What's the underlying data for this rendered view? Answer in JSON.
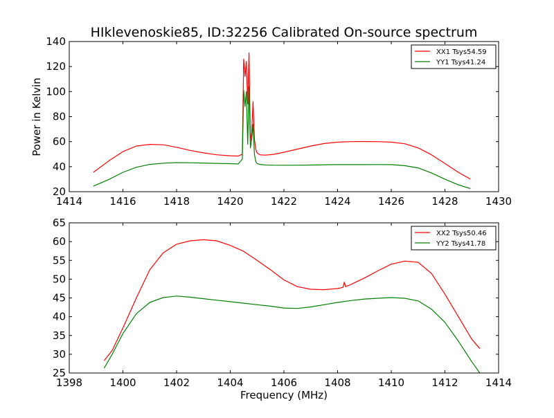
{
  "figure": {
    "title": "HIklevenoskie85, ID:32256 Calibrated On-source spectrum",
    "ylabel": "Power in Kelvin",
    "xlabel": "Frequency (MHz)"
  },
  "colors": {
    "xx": "#ff0000",
    "yy": "#008000",
    "axes": "#000000"
  },
  "chart_data": [
    {
      "type": "line",
      "title": "HIklevenoskie85, ID:32256 Calibrated On-source spectrum",
      "xlabel": "",
      "ylabel": "Power in Kelvin",
      "xlim": [
        1414,
        1430
      ],
      "ylim": [
        20,
        140
      ],
      "xticks": [
        "1414",
        "1416",
        "1418",
        "1420",
        "1422",
        "1424",
        "1426",
        "1428",
        "1430"
      ],
      "yticks": [
        "20",
        "40",
        "60",
        "80",
        "100",
        "120",
        "140"
      ],
      "grid": false,
      "legend_position": "top-right",
      "series": [
        {
          "name": "XX1 Tsys54.59",
          "color": "#ff0000",
          "x": [
            1414.9,
            1415.5,
            1416.0,
            1416.5,
            1417.0,
            1417.5,
            1418.0,
            1418.5,
            1419.0,
            1419.5,
            1420.0,
            1420.3,
            1420.45,
            1420.5,
            1420.55,
            1420.6,
            1420.65,
            1420.7,
            1420.75,
            1420.8,
            1420.85,
            1420.9,
            1420.95,
            1421.0,
            1421.1,
            1421.3,
            1421.6,
            1422.0,
            1422.5,
            1423.0,
            1423.5,
            1424.0,
            1424.5,
            1425.0,
            1425.5,
            1426.0,
            1426.5,
            1427.0,
            1427.5,
            1428.0,
            1428.5,
            1428.95
          ],
          "y": [
            35.5,
            45,
            52,
            56.5,
            57.8,
            57.5,
            55.5,
            53,
            51,
            49.5,
            48.7,
            48.5,
            50,
            126,
            112,
            124,
            90,
            131,
            60,
            68,
            92,
            62,
            54,
            51,
            49.5,
            49.2,
            49.8,
            51.5,
            54,
            56.5,
            58.5,
            59.6,
            60,
            60.1,
            60,
            59.6,
            58.3,
            55,
            49.5,
            42.5,
            35.5,
            30
          ]
        },
        {
          "name": "YY1 Tsys41.24",
          "color": "#008000",
          "x": [
            1414.9,
            1415.5,
            1416.0,
            1416.5,
            1417.0,
            1417.5,
            1418.0,
            1418.5,
            1419.0,
            1419.5,
            1420.0,
            1420.3,
            1420.45,
            1420.5,
            1420.55,
            1420.6,
            1420.65,
            1420.7,
            1420.75,
            1420.8,
            1420.85,
            1420.9,
            1420.95,
            1421.0,
            1421.1,
            1421.3,
            1421.6,
            1422.0,
            1422.5,
            1423.0,
            1423.5,
            1424.0,
            1424.5,
            1425.0,
            1425.5,
            1426.0,
            1426.5,
            1427.0,
            1427.5,
            1428.0,
            1428.5,
            1428.95
          ],
          "y": [
            24.5,
            30,
            35.5,
            39.5,
            41.8,
            42.8,
            43.2,
            43.1,
            42.9,
            42.6,
            42.4,
            42.2,
            46,
            101,
            88,
            100,
            58,
            104,
            55,
            62,
            74,
            50,
            44,
            42.5,
            41.8,
            41.4,
            41.2,
            41.1,
            41.2,
            41.3,
            41.5,
            41.6,
            41.6,
            41.6,
            41.7,
            41.6,
            40.8,
            39,
            35,
            30,
            25.5,
            22.5
          ]
        }
      ]
    },
    {
      "type": "line",
      "title": "",
      "xlabel": "Frequency (MHz)",
      "ylabel": "",
      "xlim": [
        1398,
        1414
      ],
      "ylim": [
        25,
        65
      ],
      "xticks": [
        "1398",
        "1400",
        "1402",
        "1404",
        "1406",
        "1408",
        "1410",
        "1412",
        "1414"
      ],
      "yticks": [
        "25",
        "30",
        "35",
        "40",
        "45",
        "50",
        "55",
        "60",
        "65"
      ],
      "grid": false,
      "legend_position": "top-right",
      "series": [
        {
          "name": "XX2 Tsys50.46",
          "color": "#ff0000",
          "x": [
            1399.3,
            1399.6,
            1400.0,
            1400.5,
            1401.0,
            1401.5,
            1402.0,
            1402.5,
            1403.0,
            1403.5,
            1404.0,
            1404.5,
            1405.0,
            1405.5,
            1406.0,
            1406.5,
            1407.0,
            1407.5,
            1408.0,
            1408.2,
            1408.25,
            1408.3,
            1408.5,
            1409.0,
            1409.5,
            1410.0,
            1410.5,
            1411.0,
            1411.5,
            1412.0,
            1412.5,
            1413.0,
            1413.3
          ],
          "y": [
            28.3,
            31,
            37,
            45,
            52.5,
            57,
            59.3,
            60.2,
            60.5,
            60.2,
            59,
            57.4,
            55,
            52.5,
            49.8,
            48,
            47.3,
            47.2,
            47.5,
            47.8,
            49.2,
            48,
            48.6,
            50.3,
            52.2,
            54,
            54.8,
            54.5,
            51.5,
            46,
            40,
            34,
            31.5
          ]
        },
        {
          "name": "YY2 Tsys41.78",
          "color": "#008000",
          "x": [
            1399.3,
            1399.6,
            1400.0,
            1400.5,
            1401.0,
            1401.5,
            1402.0,
            1402.5,
            1403.0,
            1403.5,
            1404.0,
            1404.5,
            1405.0,
            1405.5,
            1406.0,
            1406.5,
            1407.0,
            1407.5,
            1408.0,
            1408.5,
            1409.0,
            1409.5,
            1410.0,
            1410.5,
            1411.0,
            1411.5,
            1412.0,
            1412.5,
            1413.0,
            1413.3
          ],
          "y": [
            26.3,
            30,
            35.5,
            40.8,
            43.8,
            45.1,
            45.5,
            45.2,
            44.8,
            44.4,
            44,
            43.6,
            43.2,
            42.8,
            42.3,
            42.2,
            42.6,
            43.2,
            43.8,
            44.3,
            44.7,
            44.9,
            45.1,
            44.9,
            44.2,
            42,
            38.5,
            33.5,
            28,
            25
          ]
        }
      ]
    }
  ]
}
